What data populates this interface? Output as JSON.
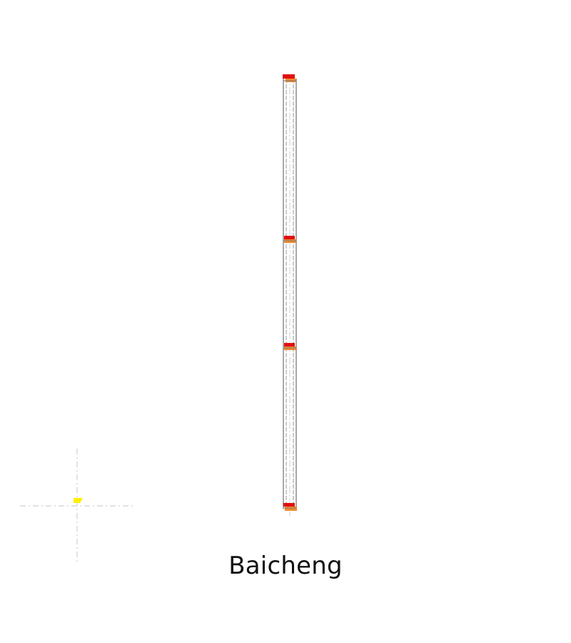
{
  "caption": "Baicheng",
  "colors": {
    "marker_red": "#e01010",
    "marker_orange": "#f08a30",
    "yellow_marker": "#ffee00",
    "column_line": "#8a8a8a",
    "crosshair": "#d0d0d0",
    "text": "#111111"
  },
  "column": {
    "nodes": 4
  },
  "icons": {
    "origin_marker": "yellow-flag-icon"
  }
}
